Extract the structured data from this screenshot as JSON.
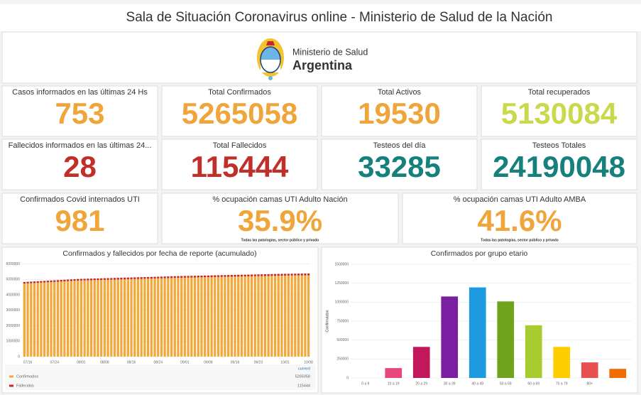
{
  "header": {
    "title": "Sala de Situación Coronavirus online - Ministerio de Salud de la Nación"
  },
  "logo": {
    "line1": "Ministerio de Salud",
    "line2": "Argentina"
  },
  "cards": [
    {
      "title": "Casos informados en las últimas 24 Hs",
      "value": "753",
      "color": "#f0a53a"
    },
    {
      "title": "Total Confirmados",
      "value": "5265058",
      "color": "#f0a53a"
    },
    {
      "title": "Total Activos",
      "value": "19530",
      "color": "#f0a53a"
    },
    {
      "title": "Total recuperados",
      "value": "5130084",
      "color": "#c9d94c"
    },
    {
      "title": "Fallecidos informados en las últimas 24...",
      "value": "28",
      "color": "#c0302b"
    },
    {
      "title": "Total Fallecidos",
      "value": "115444",
      "color": "#c0302b"
    },
    {
      "title": "Testeos del día",
      "value": "33285",
      "color": "#15807c"
    },
    {
      "title": "Testeos Totales",
      "value": "24190048",
      "color": "#15807c"
    },
    {
      "title": "Confirmados Covid internados UTI",
      "value": "981",
      "color": "#f0a53a"
    },
    {
      "title": "% ocupación camas UTI Adulto Nación",
      "value": "35.9%",
      "color": "#f0a53a",
      "note": "Todas las patologías, sector público y privado"
    },
    {
      "title": "% ocupación camas UTI Adulto AMBA",
      "value": "41.6%",
      "color": "#f0a53a",
      "note": "Todas las patologías, sector público y privado"
    }
  ],
  "chart_data": [
    {
      "type": "bar",
      "stacked": true,
      "title": "Confirmados y fallecidos por fecha de reporte (acumulado)",
      "legend_header": "current",
      "categories": [
        null,
        "07/16",
        null,
        null,
        null,
        null,
        null,
        null,
        null,
        "07/24",
        null,
        null,
        null,
        null,
        null,
        null,
        null,
        "08/01",
        null,
        null,
        null,
        null,
        null,
        null,
        "08/08",
        null,
        null,
        null,
        null,
        null,
        null,
        null,
        "08/16",
        null,
        null,
        null,
        null,
        null,
        null,
        null,
        "08/24",
        null,
        null,
        null,
        null,
        null,
        null,
        null,
        "09/01",
        null,
        null,
        null,
        null,
        null,
        null,
        "09/08",
        null,
        null,
        null,
        null,
        null,
        null,
        null,
        "09/16",
        null,
        null,
        null,
        null,
        null,
        null,
        "09/23",
        null,
        null,
        null,
        null,
        null,
        null,
        null,
        "10/01",
        null,
        null,
        null,
        null,
        null,
        null,
        "10/08"
      ],
      "series": [
        {
          "name": "Confirmados",
          "color": "#f2a93b",
          "values": [
            4730000,
            4742000,
            4754000,
            4766000,
            4778000,
            4790000,
            4802000,
            4814000,
            4826000,
            4838000,
            4850000,
            4862000,
            4874000,
            4886000,
            4898000,
            4910000,
            4922000,
            4928000,
            4934000,
            4940000,
            4946000,
            4952000,
            4958000,
            4964000,
            4970000,
            4976000,
            4982000,
            4988000,
            4994000,
            5000000,
            5006000,
            5012000,
            5018000,
            5024000,
            5030000,
            5036000,
            5042000,
            5048000,
            5054000,
            5060000,
            5066000,
            5072000,
            5078000,
            5084000,
            5090000,
            5096000,
            5102000,
            5108000,
            5112500,
            5117000,
            5121500,
            5126000,
            5130500,
            5135000,
            5139500,
            5144000,
            5148500,
            5153000,
            5157500,
            5162000,
            5166500,
            5171000,
            5175500,
            5180000,
            5184500,
            5189000,
            5193500,
            5198000,
            5202500,
            5207000,
            5211500,
            5216000,
            5220500,
            5225000,
            5229500,
            5234000,
            5238500,
            5243000,
            5245800,
            5248500,
            5251300,
            5254000,
            5256800,
            5259600,
            5262300,
            5265058
          ]
        },
        {
          "name": "Fallecidos",
          "color": "#c62828",
          "values": [
            102000,
            102158,
            102316,
            102474,
            102632,
            102790,
            102948,
            103106,
            103264,
            103422,
            103580,
            103738,
            103896,
            104054,
            104212,
            104370,
            104528,
            104686,
            104844,
            105002,
            105160,
            105318,
            105476,
            105634,
            105792,
            105950,
            106108,
            106266,
            106424,
            106582,
            106740,
            106898,
            107056,
            107214,
            107372,
            107530,
            107688,
            107846,
            108004,
            108162,
            108320,
            108478,
            108636,
            108794,
            108952,
            109110,
            109268,
            109426,
            109584,
            109742,
            109900,
            110058,
            110216,
            110374,
            110532,
            110690,
            110848,
            111006,
            111164,
            111322,
            111480,
            111638,
            111796,
            111954,
            112112,
            112270,
            112428,
            112586,
            112744,
            112902,
            113060,
            113218,
            113376,
            113534,
            113692,
            113850,
            114008,
            114166,
            114324,
            114482,
            114640,
            114798,
            114956,
            115114,
            115272,
            115444
          ]
        }
      ],
      "ylim": [
        0,
        6300000
      ],
      "yticks": [
        0,
        1000000,
        2000000,
        3000000,
        4000000,
        5000000,
        6000000
      ],
      "grid": true
    },
    {
      "type": "bar",
      "title": "Confirmados por grupo etario",
      "y_label": "Confirmados",
      "categories": [
        "0 a 9",
        "10 a 19",
        "20 a 29",
        "30 a 39",
        "40 a 49",
        "50 a 59",
        "60 a 69",
        "70 a 79",
        "80+",
        null
      ],
      "values": [
        0,
        130000,
        410000,
        1075000,
        1195000,
        1010000,
        695000,
        410000,
        205000,
        120000
      ],
      "colors": [
        "#e8457d",
        "#e8457d",
        "#c2185b",
        "#7b1fa2",
        "#1e9be0",
        "#6ea31b",
        "#a6cc30",
        "#ffcc00",
        "#e85050",
        "#ef6c00"
      ],
      "ylim": [
        0,
        1500000
      ],
      "yticks": [
        0,
        250000,
        500000,
        750000,
        1000000,
        1250000,
        1500000
      ],
      "grid": true
    }
  ]
}
